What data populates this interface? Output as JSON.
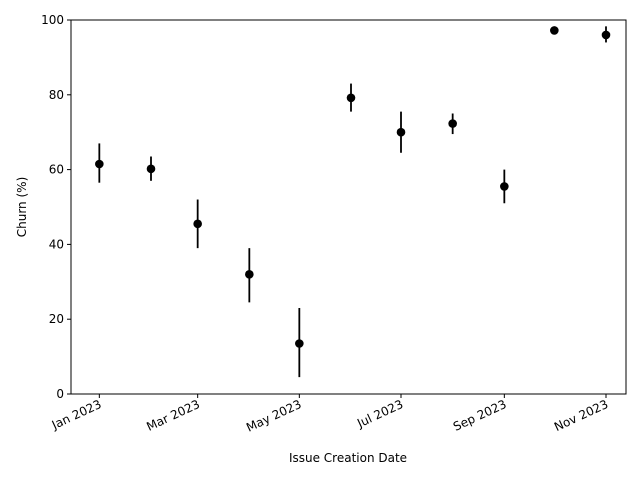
{
  "chart_data": {
    "type": "scatter",
    "title": "",
    "xlabel": "Issue Creation Date",
    "ylabel": "Churn (%)",
    "ylim": [
      0,
      100
    ],
    "yticks": [
      0,
      20,
      40,
      60,
      80,
      100
    ],
    "xlim": [
      "2022-12-15",
      "2023-11-13"
    ],
    "xticks": [
      "2023-01-01",
      "2023-03-01",
      "2023-05-01",
      "2023-07-01",
      "2023-09-01",
      "2023-11-01"
    ],
    "xtick_labels": [
      "Jan 2023",
      "Mar 2023",
      "May 2023",
      "Jul 2023",
      "Sep 2023",
      "Nov 2023"
    ],
    "grid": false,
    "marker_color": "#000000",
    "points": [
      {
        "x": "2023-01-01",
        "y": 61.5,
        "lower": 56.5,
        "upper": 67.0
      },
      {
        "x": "2023-02-01",
        "y": 60.2,
        "lower": 57.0,
        "upper": 63.5
      },
      {
        "x": "2023-03-01",
        "y": 45.5,
        "lower": 39.0,
        "upper": 52.0
      },
      {
        "x": "2023-04-01",
        "y": 32.0,
        "lower": 24.5,
        "upper": 39.0
      },
      {
        "x": "2023-05-01",
        "y": 13.5,
        "lower": 4.5,
        "upper": 23.0
      },
      {
        "x": "2023-06-01",
        "y": 79.2,
        "lower": 75.5,
        "upper": 83.0
      },
      {
        "x": "2023-07-01",
        "y": 70.0,
        "lower": 64.5,
        "upper": 75.5
      },
      {
        "x": "2023-08-01",
        "y": 72.3,
        "lower": 69.5,
        "upper": 75.0
      },
      {
        "x": "2023-09-01",
        "y": 55.5,
        "lower": 51.0,
        "upper": 60.0
      },
      {
        "x": "2023-10-01",
        "y": 97.2,
        "lower": 96.8,
        "upper": 97.6
      },
      {
        "x": "2023-11-01",
        "y": 96.0,
        "lower": 94.0,
        "upper": 98.3
      }
    ]
  }
}
